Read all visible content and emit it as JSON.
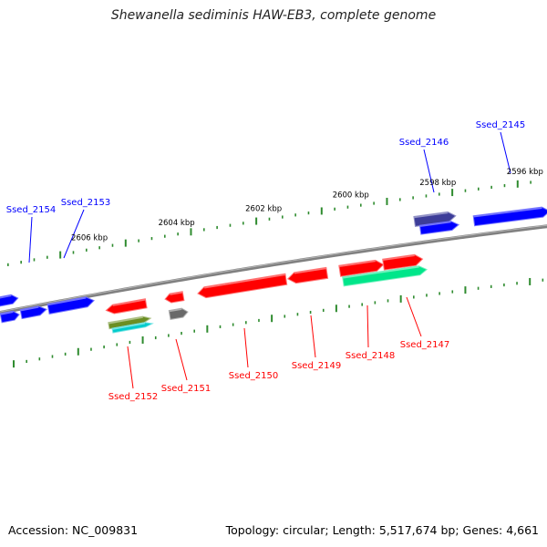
{
  "title": "Shewanella sediminis HAW-EB3, complete genome",
  "footer": {
    "accession": "Accession: NC_009831",
    "summary": "Topology: circular; Length: 5,517,674 bp; Genes: 4,661"
  },
  "colors": {
    "backbone": "#808080",
    "ticks": "#2e8b2e",
    "blue": "#0000ff",
    "red": "#ff0000",
    "navy": "#3d3d99",
    "olive": "#6b8e23",
    "cyan": "#00cccc",
    "teal": "#00e68a",
    "gray": "#696969"
  },
  "kbp_labels": [
    {
      "kbp": 2596,
      "text": "2596 kbp"
    },
    {
      "kbp": 2598,
      "text": "2598 kbp"
    },
    {
      "kbp": 2600,
      "text": "2600 kbp"
    },
    {
      "kbp": 2602,
      "text": "2602 kbp"
    },
    {
      "kbp": 2604,
      "text": "2604 kbp"
    },
    {
      "kbp": 2606,
      "text": "2606 kbp"
    }
  ],
  "genes": [
    {
      "name": "Ssed_2145",
      "color": "blue"
    },
    {
      "name": "Ssed_2146",
      "color": "blue"
    },
    {
      "name": "Ssed_2147",
      "color": "red"
    },
    {
      "name": "Ssed_2148",
      "color": "red"
    },
    {
      "name": "Ssed_2149",
      "color": "red"
    },
    {
      "name": "Ssed_2150",
      "color": "red"
    },
    {
      "name": "Ssed_2151",
      "color": "red"
    },
    {
      "name": "Ssed_2152",
      "color": "red"
    },
    {
      "name": "Ssed_2153",
      "color": "blue"
    },
    {
      "name": "Ssed_2154",
      "color": "blue"
    }
  ]
}
